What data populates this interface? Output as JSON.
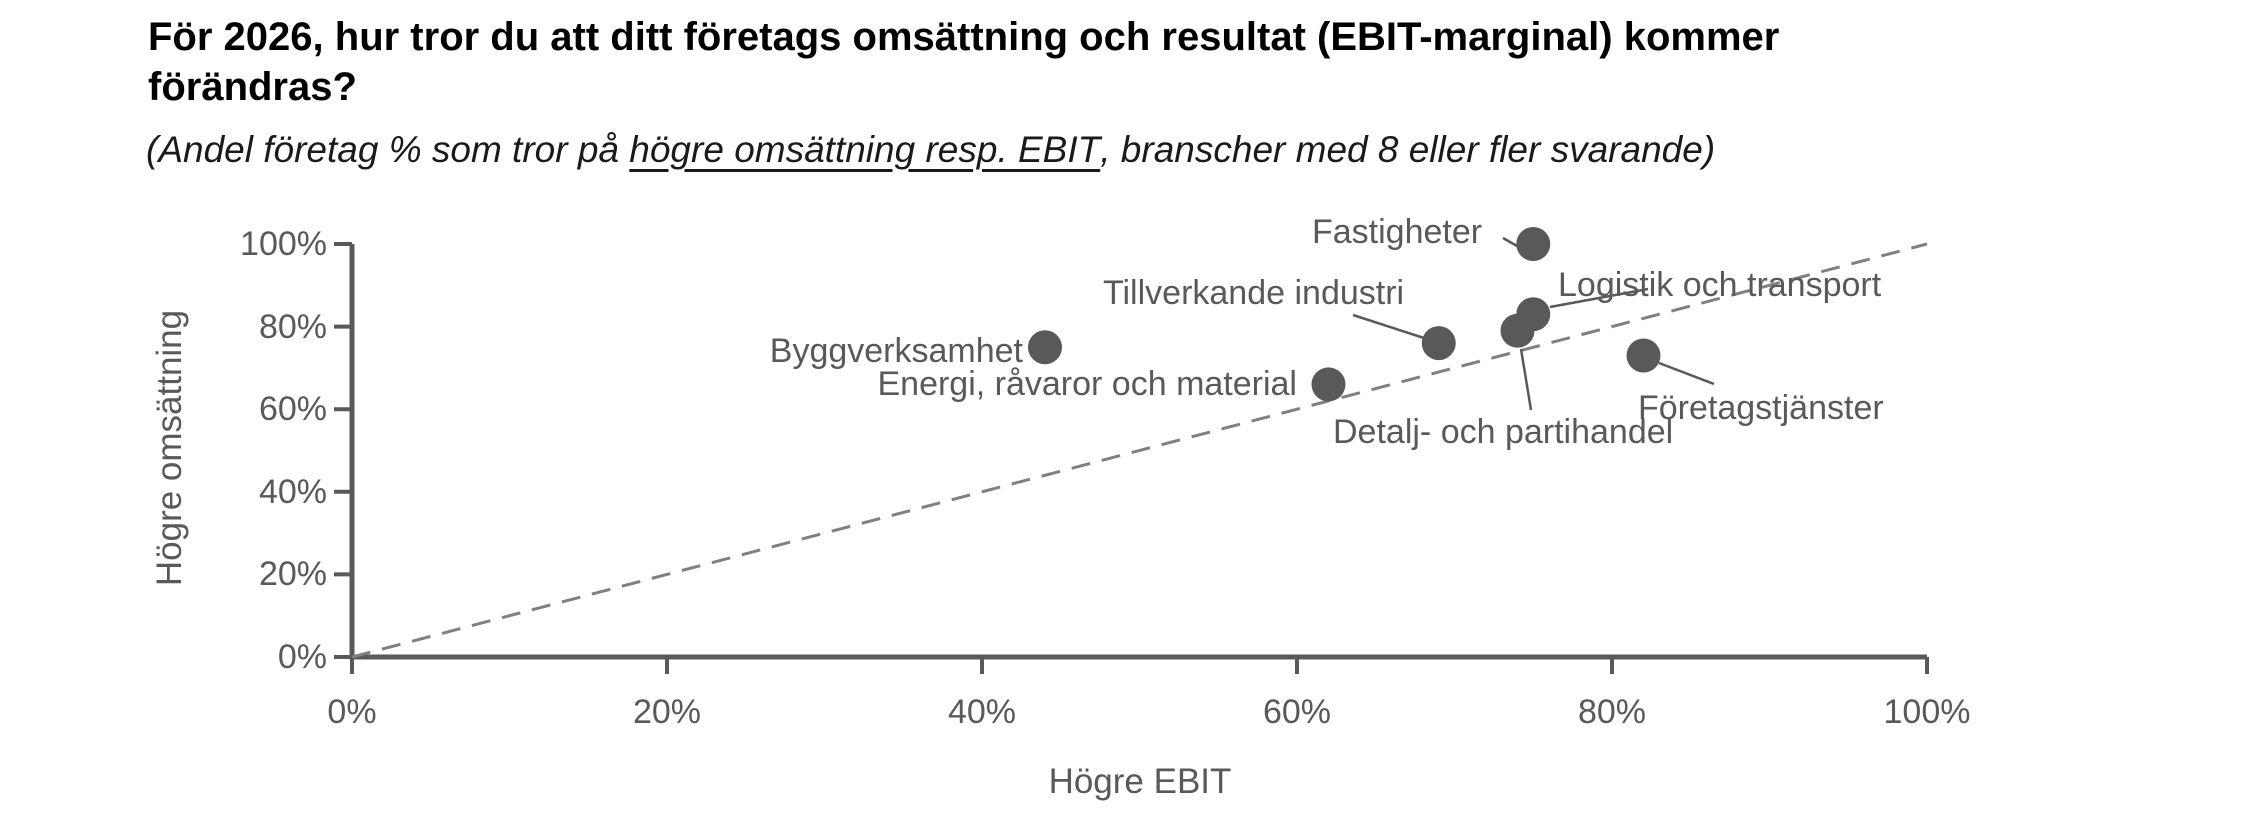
{
  "header": {
    "title_line1": "För 2026, hur tror du att ditt företags omsättning och resultat (EBIT-marginal) kommer",
    "title_line2": "förändras?",
    "subtitle_prefix": "(Andel företag % som tror på ",
    "subtitle_underlined": "högre omsättning resp. EBIT",
    "subtitle_suffix": ", branscher med 8 eller fler svarande)"
  },
  "colors": {
    "dot": "#595959",
    "axis": "#595959",
    "gray_text": "#595959",
    "dashed_line": "#808080",
    "title_text": "#000000"
  },
  "chart_data": {
    "type": "scatter",
    "title": "För 2026, hur tror du att ditt företags omsättning och resultat (EBIT-marginal) kommer förändras?",
    "subtitle": "(Andel företag % som tror på högre omsättning resp. EBIT, branscher med 8 eller fler svarande)",
    "xlabel": "Högre EBIT",
    "ylabel": "Högre omsättning",
    "xlim": [
      0,
      100
    ],
    "ylim": [
      0,
      100
    ],
    "x_ticks": [
      "0%",
      "20%",
      "40%",
      "60%",
      "80%",
      "100%"
    ],
    "y_ticks": [
      "100%",
      "80%",
      "60%",
      "40%",
      "20%",
      "0%"
    ],
    "grid": false,
    "legend": false,
    "reference_line": {
      "style": "dashed",
      "from": [
        0,
        0
      ],
      "to": [
        100,
        100
      ]
    },
    "points": [
      {
        "name": "Byggverksamhet",
        "x": 44,
        "y": 75
      },
      {
        "name": "Energi, råvaror och material",
        "x": 62,
        "y": 66
      },
      {
        "name": "Tillverkande industri",
        "x": 69,
        "y": 76
      },
      {
        "name": "Fastigheter",
        "x": 75,
        "y": 100
      },
      {
        "name": "Logistik och transport",
        "x": 75,
        "y": 83
      },
      {
        "name": "Detalj- och partihandel",
        "x": 74,
        "y": 79
      },
      {
        "name": "Företagstjänster",
        "x": 82,
        "y": 73
      }
    ]
  }
}
